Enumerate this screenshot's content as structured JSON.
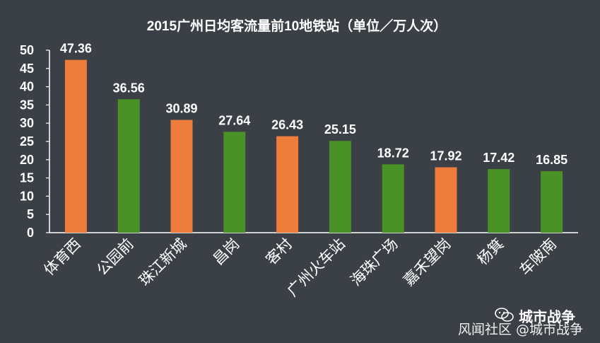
{
  "chart_data": {
    "type": "bar",
    "title": "2015广州日均客流量前10地铁站（单位／万人次）",
    "categories": [
      "体育西",
      "公园前",
      "珠江新城",
      "昌岗",
      "客村",
      "广州火车站",
      "海珠广场",
      "嘉禾望岗",
      "杨箕",
      "车陂南"
    ],
    "values": [
      47.36,
      36.56,
      30.89,
      27.64,
      26.43,
      25.15,
      18.72,
      17.92,
      17.42,
      16.85
    ],
    "value_labels": [
      "47.36",
      "36.56",
      "30.89",
      "27.64",
      "26.43",
      "25.15",
      "18.72",
      "17.92",
      "17.42",
      "16.85"
    ],
    "bar_colors": [
      "#ee7d3b",
      "#4a9126",
      "#ee7d3b",
      "#4a9126",
      "#ee7d3b",
      "#4a9126",
      "#4a9126",
      "#ee7d3b",
      "#4a9126",
      "#4a9126"
    ],
    "ylim": [
      0,
      50
    ],
    "yticks": [
      0,
      5,
      10,
      15,
      20,
      25,
      30,
      35,
      40,
      45,
      50
    ],
    "xlabel": "",
    "ylabel": "",
    "grid": false,
    "legend": "none"
  },
  "colors": {
    "background": "#3b4046",
    "orange": "#ee7d3b",
    "green": "#4a9126",
    "text": "#ffffff",
    "axis": "#ffffff"
  },
  "watermark": {
    "brand": "城市战争",
    "source": "风闻社区 @城市战争",
    "icon": "wechat-icon"
  }
}
